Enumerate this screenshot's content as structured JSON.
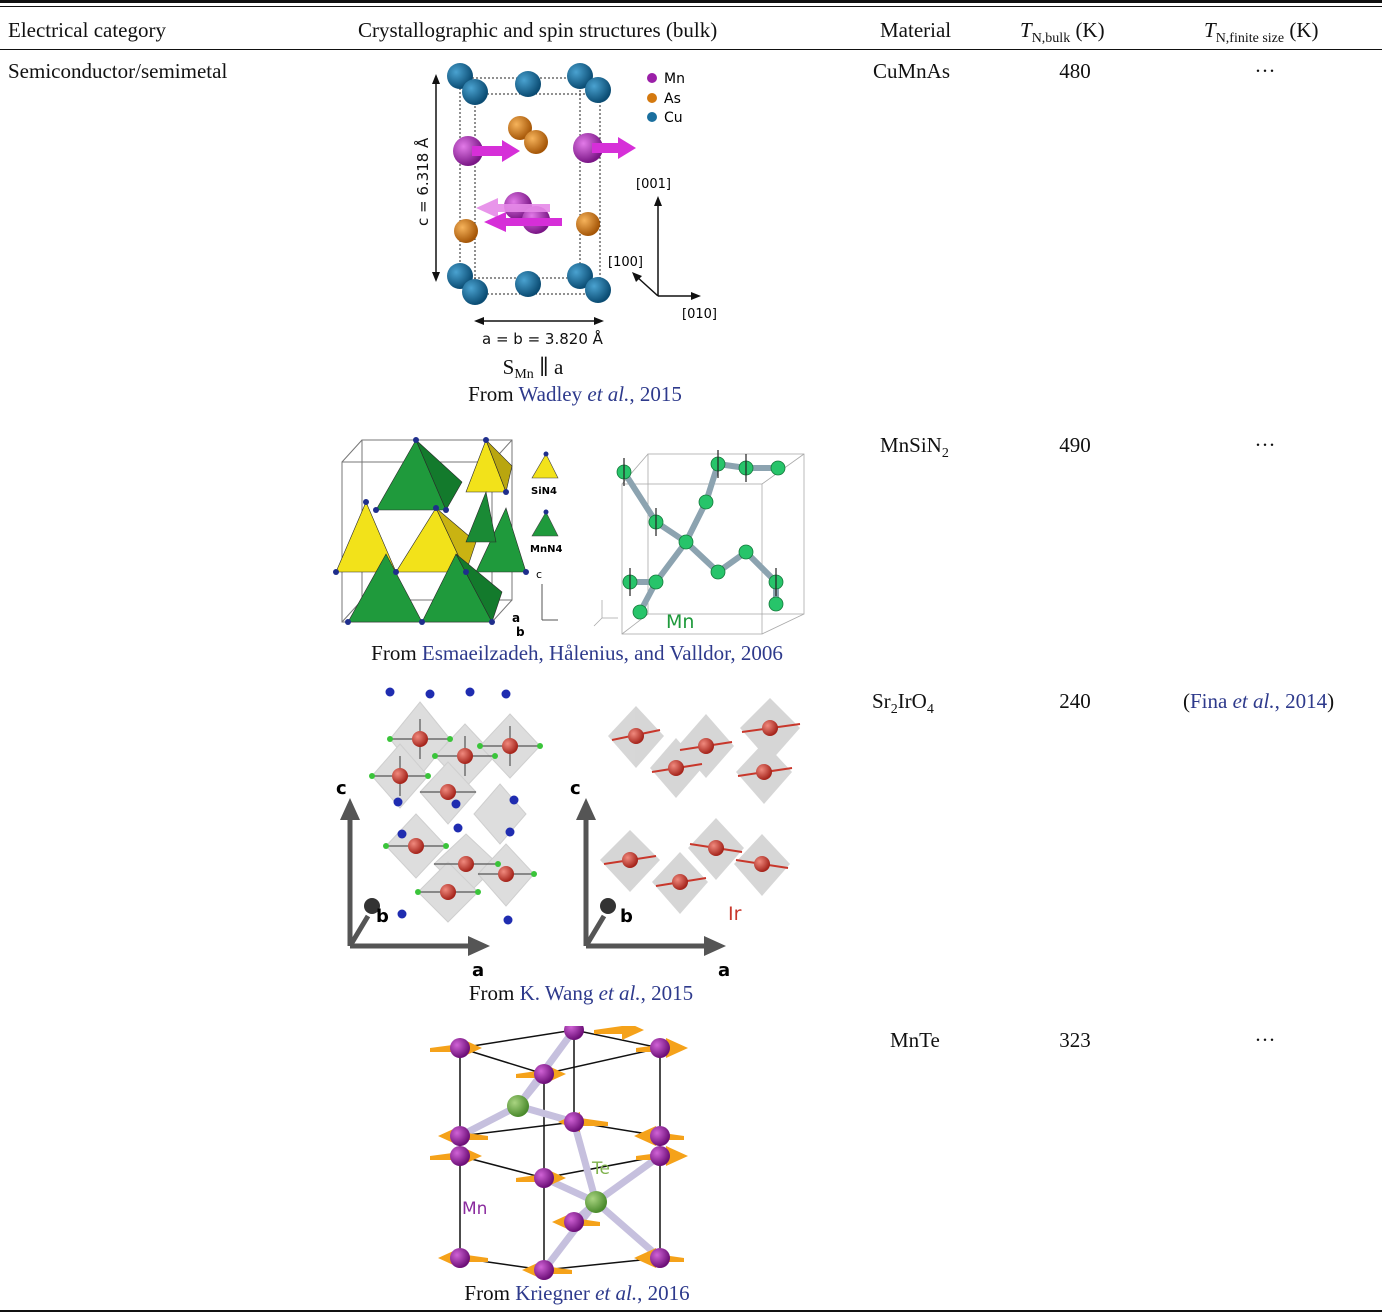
{
  "header": {
    "col1": "Electrical category",
    "col2": "Crystallographic and spin structures (bulk)",
    "col3": "Material",
    "col4_main": "T",
    "col4_sub": "N,bulk",
    "col4_unit": "(K)",
    "col5_main": "T",
    "col5_sub": "N,finite size",
    "col5_unit": "(K)"
  },
  "category": "Semiconductor/semimetal",
  "rows": [
    {
      "material": "CuMnAs",
      "t_bulk": "480",
      "t_finite": "···",
      "caption_prefix": "From ",
      "caption_author": "Wadley ",
      "caption_etal": "et al.",
      "caption_year": ", 2015",
      "extra_label": "S",
      "extra_sub": "Mn",
      "extra_rest": " ∥ a",
      "figure": {
        "legend": [
          "Mn",
          "As",
          "Cu"
        ],
        "c_label": "c = 6.318 Å",
        "ab_label": "a = b = 3.820 Å",
        "dir_001": "[001]",
        "dir_100": "[100]",
        "dir_010": "[010]"
      }
    },
    {
      "material_main": "MnSiN",
      "material_sub": "2",
      "t_bulk": "490",
      "t_finite": "···",
      "caption_prefix": "From ",
      "caption_author": "Esmaeilzadeh, Hålenius, and Valldor, 2006",
      "figure": {
        "sin4": "SiN4",
        "mnn4": "MnN4",
        "axis_c": "c",
        "axis_a": "a",
        "axis_b": "b",
        "mn": "Mn"
      }
    },
    {
      "material_a": "Sr",
      "material_a_sub": "2",
      "material_b": "IrO",
      "material_b_sub": "4",
      "t_bulk": "240",
      "t_finite_author": "Fina ",
      "t_finite_etal": "et al.",
      "t_finite_year": ", 2014",
      "caption_prefix": "From ",
      "caption_author": "K. Wang ",
      "caption_etal": "et al.",
      "caption_year": ", 2015",
      "figure": {
        "axis_c": "c",
        "axis_b": "b",
        "axis_a": "a",
        "ir": "Ir"
      }
    },
    {
      "material": "MnTe",
      "t_bulk": "323",
      "t_finite": "···",
      "caption_prefix": "From ",
      "caption_author": "Kriegner ",
      "caption_etal": "et al.",
      "caption_year": ", 2016",
      "figure": {
        "te": "Te",
        "mn": "Mn"
      }
    }
  ],
  "colors": {
    "mn": "#9b1fa8",
    "as": "#d4790f",
    "cu": "#1a6f9e",
    "link": "#2e3a8c",
    "green_tet": "#1f9a3c",
    "yellow_tet": "#f2e21a",
    "ir": "#c8372b",
    "arrow_orange": "#f5a21a",
    "te": "#7fb24d"
  }
}
